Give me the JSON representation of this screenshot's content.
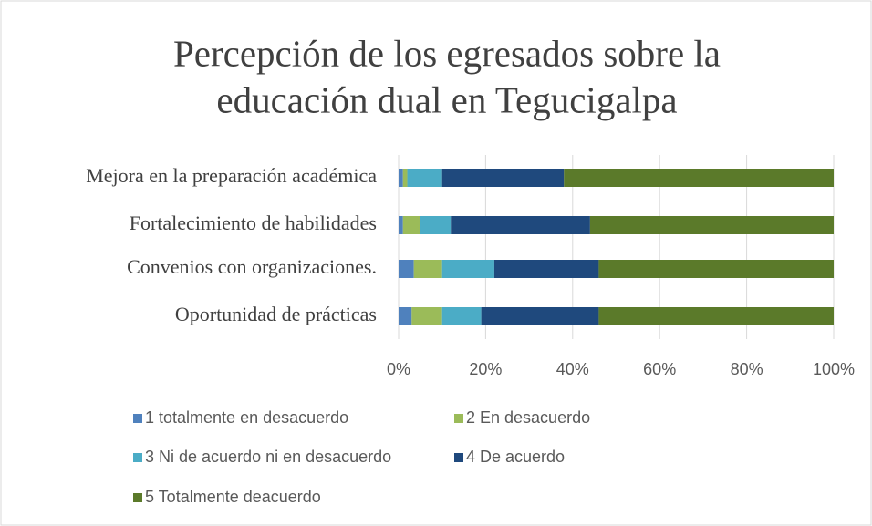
{
  "chart_data": {
    "type": "stacked_bar_horizontal",
    "title": [
      "Percepción de los egresados sobre la",
      "educación dual en Tegucigalpa"
    ],
    "categories": [
      "Mejora en la preparación académica",
      "Fortalecimiento de habilidades",
      "Convenios con organizaciones.",
      "Oportunidad de prácticas"
    ],
    "series": [
      {
        "name": "1 totalmente en desacuerdo",
        "color": "#4f81bd",
        "values": [
          1,
          1,
          3.5,
          3
        ]
      },
      {
        "name": "2 En desacuerdo",
        "color": "#9bbb59",
        "values": [
          1,
          4,
          6.5,
          7
        ]
      },
      {
        "name": "3 Ni de acuerdo ni en desacuerdo",
        "color": "#4bacc6",
        "values": [
          8,
          7,
          12,
          9
        ]
      },
      {
        "name": "4 De acuerdo",
        "color": "#1f497d",
        "values": [
          28,
          32,
          24,
          27
        ]
      },
      {
        "name": "5 Totalmente deacuerdo",
        "color": "#5b7a2a",
        "values": [
          62,
          56,
          54,
          54
        ]
      }
    ],
    "xlim": [
      0,
      100
    ],
    "xticks": [
      {
        "value": 0,
        "label": "0%"
      },
      {
        "value": 20,
        "label": "20%"
      },
      {
        "value": 40,
        "label": "40%"
      },
      {
        "value": 60,
        "label": "60%"
      },
      {
        "value": 80,
        "label": "80%"
      },
      {
        "value": 100,
        "label": "100%"
      }
    ],
    "grid": true,
    "legend": "bottom"
  }
}
